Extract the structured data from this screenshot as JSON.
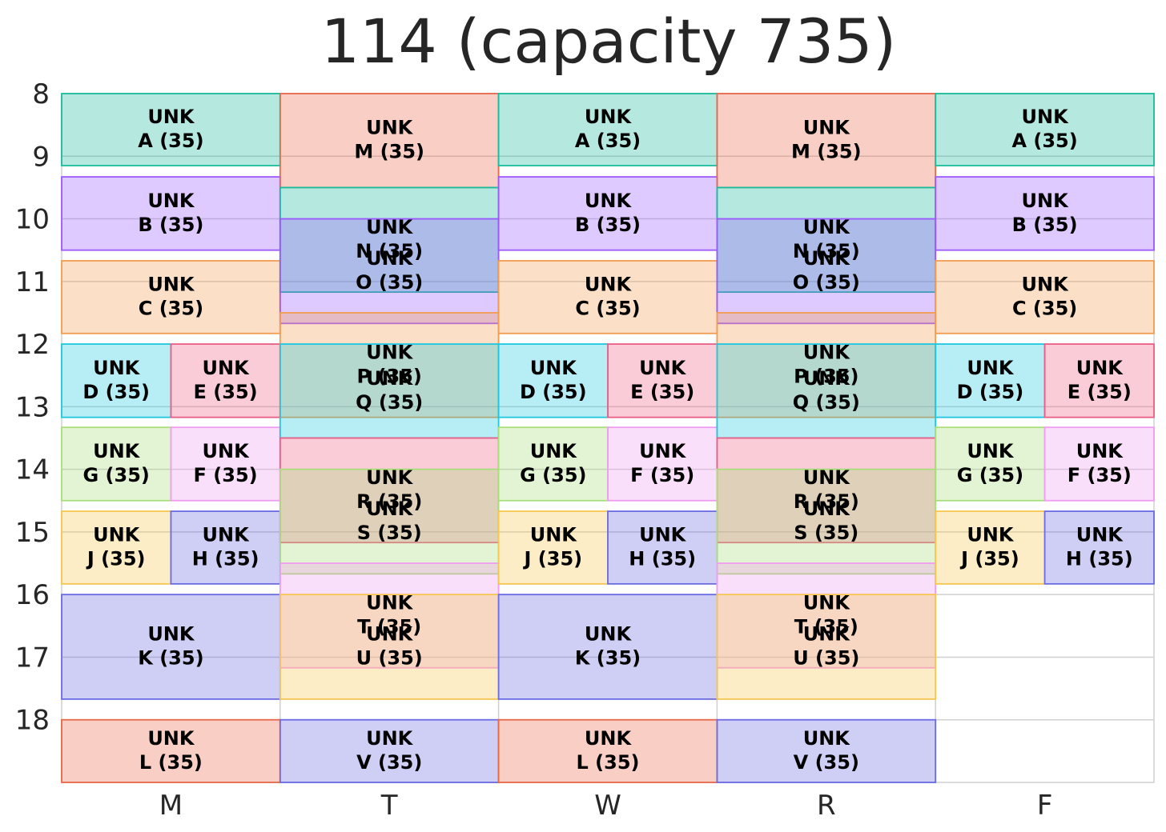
{
  "chart_data": {
    "type": "schedule",
    "title": "114 (capacity 735)",
    "days": [
      "M",
      "T",
      "W",
      "R",
      "F"
    ],
    "yticks": [
      8,
      9,
      10,
      11,
      12,
      13,
      14,
      15,
      16,
      17,
      18
    ],
    "ylim": [
      8,
      19
    ],
    "grid": true,
    "colors": {
      "A": "#1abc9c",
      "B": "#9b59ff",
      "C": "#f39c4f",
      "D": "#1ec8e0",
      "E": "#eb5f86",
      "F": "#f09cf0",
      "G": "#a9de7a",
      "H": "#6b6be3",
      "J": "#f6c64f",
      "K": "#6b6be3",
      "L": "#e8684a",
      "M": "#e8684a",
      "N": "#1abc9c",
      "O": "#9b59ff",
      "P": "#f39c4f",
      "Q": "#1ec8e0",
      "R": "#eb5f86",
      "S": "#a9de7a",
      "T": "#f09cf0",
      "U": "#f6c64f",
      "V": "#6b6be3"
    },
    "events": [
      {
        "day": 0,
        "start": 8.0,
        "end": 9.15,
        "col": 0,
        "cols": 1,
        "key": "A",
        "line1": "UNK",
        "line2": "A (35)"
      },
      {
        "day": 0,
        "start": 9.33,
        "end": 10.5,
        "col": 0,
        "cols": 1,
        "key": "B",
        "line1": "UNK",
        "line2": "B (35)"
      },
      {
        "day": 0,
        "start": 10.67,
        "end": 11.83,
        "col": 0,
        "cols": 1,
        "key": "C",
        "line1": "UNK",
        "line2": "C (35)"
      },
      {
        "day": 0,
        "start": 12.0,
        "end": 13.17,
        "col": 0,
        "cols": 2,
        "key": "D",
        "line1": "UNK",
        "line2": "D (35)"
      },
      {
        "day": 0,
        "start": 12.0,
        "end": 13.17,
        "col": 1,
        "cols": 2,
        "key": "E",
        "line1": "UNK",
        "line2": "E (35)"
      },
      {
        "day": 0,
        "start": 13.33,
        "end": 14.5,
        "col": 0,
        "cols": 2,
        "key": "G",
        "line1": "UNK",
        "line2": "G (35)"
      },
      {
        "day": 0,
        "start": 13.33,
        "end": 14.5,
        "col": 1,
        "cols": 2,
        "key": "F",
        "line1": "UNK",
        "line2": "F (35)"
      },
      {
        "day": 0,
        "start": 14.67,
        "end": 15.83,
        "col": 0,
        "cols": 2,
        "key": "J",
        "line1": "UNK",
        "line2": "J (35)"
      },
      {
        "day": 0,
        "start": 14.67,
        "end": 15.83,
        "col": 1,
        "cols": 2,
        "key": "H",
        "line1": "UNK",
        "line2": "H (35)"
      },
      {
        "day": 0,
        "start": 16.0,
        "end": 17.67,
        "col": 0,
        "cols": 1,
        "key": "K",
        "line1": "UNK",
        "line2": "K (35)"
      },
      {
        "day": 0,
        "start": 18.0,
        "end": 19.0,
        "col": 0,
        "cols": 1,
        "key": "L",
        "line1": "UNK",
        "line2": "L (35)"
      },
      {
        "day": 1,
        "start": 8.0,
        "end": 9.5,
        "col": 0,
        "cols": 1,
        "key": "M",
        "line1": "UNK",
        "line2": "M (35)"
      },
      {
        "day": 1,
        "start": 9.5,
        "end": 11.17,
        "col": 0,
        "cols": 1,
        "key": "N",
        "line1": "UNK",
        "line2": "N (35)"
      },
      {
        "day": 1,
        "start": 10.0,
        "end": 11.67,
        "col": 0,
        "cols": 1,
        "key": "O",
        "line1": "UNK",
        "line2": "O (35)"
      },
      {
        "day": 1,
        "start": 11.5,
        "end": 13.17,
        "col": 0,
        "cols": 1,
        "key": "P",
        "line1": "UNK",
        "line2": "P (35)"
      },
      {
        "day": 1,
        "start": 12.0,
        "end": 13.5,
        "col": 0,
        "cols": 1,
        "key": "Q",
        "line1": "UNK",
        "line2": "Q (35)"
      },
      {
        "day": 1,
        "start": 13.5,
        "end": 15.17,
        "col": 0,
        "cols": 1,
        "key": "R",
        "line1": "UNK",
        "line2": "R (35)"
      },
      {
        "day": 1,
        "start": 14.0,
        "end": 15.67,
        "col": 0,
        "cols": 1,
        "key": "S",
        "line1": "UNK",
        "line2": "S (35)"
      },
      {
        "day": 1,
        "start": 15.5,
        "end": 17.17,
        "col": 0,
        "cols": 1,
        "key": "T",
        "line1": "UNK",
        "line2": "T (35)"
      },
      {
        "day": 1,
        "start": 16.0,
        "end": 17.67,
        "col": 0,
        "cols": 1,
        "key": "U",
        "line1": "UNK",
        "line2": "U (35)"
      },
      {
        "day": 1,
        "start": 18.0,
        "end": 19.0,
        "col": 0,
        "cols": 1,
        "key": "V",
        "line1": "UNK",
        "line2": "V (35)"
      },
      {
        "day": 2,
        "start": 8.0,
        "end": 9.15,
        "col": 0,
        "cols": 1,
        "key": "A",
        "line1": "UNK",
        "line2": "A (35)"
      },
      {
        "day": 2,
        "start": 9.33,
        "end": 10.5,
        "col": 0,
        "cols": 1,
        "key": "B",
        "line1": "UNK",
        "line2": "B (35)"
      },
      {
        "day": 2,
        "start": 10.67,
        "end": 11.83,
        "col": 0,
        "cols": 1,
        "key": "C",
        "line1": "UNK",
        "line2": "C (35)"
      },
      {
        "day": 2,
        "start": 12.0,
        "end": 13.17,
        "col": 0,
        "cols": 2,
        "key": "D",
        "line1": "UNK",
        "line2": "D (35)"
      },
      {
        "day": 2,
        "start": 12.0,
        "end": 13.17,
        "col": 1,
        "cols": 2,
        "key": "E",
        "line1": "UNK",
        "line2": "E (35)"
      },
      {
        "day": 2,
        "start": 13.33,
        "end": 14.5,
        "col": 0,
        "cols": 2,
        "key": "G",
        "line1": "UNK",
        "line2": "G (35)"
      },
      {
        "day": 2,
        "start": 13.33,
        "end": 14.5,
        "col": 1,
        "cols": 2,
        "key": "F",
        "line1": "UNK",
        "line2": "F (35)"
      },
      {
        "day": 2,
        "start": 14.67,
        "end": 15.83,
        "col": 0,
        "cols": 2,
        "key": "J",
        "line1": "UNK",
        "line2": "J (35)"
      },
      {
        "day": 2,
        "start": 14.67,
        "end": 15.83,
        "col": 1,
        "cols": 2,
        "key": "H",
        "line1": "UNK",
        "line2": "H (35)"
      },
      {
        "day": 2,
        "start": 16.0,
        "end": 17.67,
        "col": 0,
        "cols": 1,
        "key": "K",
        "line1": "UNK",
        "line2": "K (35)"
      },
      {
        "day": 2,
        "start": 18.0,
        "end": 19.0,
        "col": 0,
        "cols": 1,
        "key": "L",
        "line1": "UNK",
        "line2": "L (35)"
      },
      {
        "day": 3,
        "start": 8.0,
        "end": 9.5,
        "col": 0,
        "cols": 1,
        "key": "M",
        "line1": "UNK",
        "line2": "M (35)"
      },
      {
        "day": 3,
        "start": 9.5,
        "end": 11.17,
        "col": 0,
        "cols": 1,
        "key": "N",
        "line1": "UNK",
        "line2": "N (35)"
      },
      {
        "day": 3,
        "start": 10.0,
        "end": 11.67,
        "col": 0,
        "cols": 1,
        "key": "O",
        "line1": "UNK",
        "line2": "O (35)"
      },
      {
        "day": 3,
        "start": 11.5,
        "end": 13.17,
        "col": 0,
        "cols": 1,
        "key": "P",
        "line1": "UNK",
        "line2": "P (35)"
      },
      {
        "day": 3,
        "start": 12.0,
        "end": 13.5,
        "col": 0,
        "cols": 1,
        "key": "Q",
        "line1": "UNK",
        "line2": "Q (35)"
      },
      {
        "day": 3,
        "start": 13.5,
        "end": 15.17,
        "col": 0,
        "cols": 1,
        "key": "R",
        "line1": "UNK",
        "line2": "R (35)"
      },
      {
        "day": 3,
        "start": 14.0,
        "end": 15.67,
        "col": 0,
        "cols": 1,
        "key": "S",
        "line1": "UNK",
        "line2": "S (35)"
      },
      {
        "day": 3,
        "start": 15.5,
        "end": 17.17,
        "col": 0,
        "cols": 1,
        "key": "T",
        "line1": "UNK",
        "line2": "T (35)"
      },
      {
        "day": 3,
        "start": 16.0,
        "end": 17.67,
        "col": 0,
        "cols": 1,
        "key": "U",
        "line1": "UNK",
        "line2": "U (35)"
      },
      {
        "day": 3,
        "start": 18.0,
        "end": 19.0,
        "col": 0,
        "cols": 1,
        "key": "V",
        "line1": "UNK",
        "line2": "V (35)"
      },
      {
        "day": 4,
        "start": 8.0,
        "end": 9.15,
        "col": 0,
        "cols": 1,
        "key": "A",
        "line1": "UNK",
        "line2": "A (35)"
      },
      {
        "day": 4,
        "start": 9.33,
        "end": 10.5,
        "col": 0,
        "cols": 1,
        "key": "B",
        "line1": "UNK",
        "line2": "B (35)"
      },
      {
        "day": 4,
        "start": 10.67,
        "end": 11.83,
        "col": 0,
        "cols": 1,
        "key": "C",
        "line1": "UNK",
        "line2": "C (35)"
      },
      {
        "day": 4,
        "start": 12.0,
        "end": 13.17,
        "col": 0,
        "cols": 2,
        "key": "D",
        "line1": "UNK",
        "line2": "D (35)"
      },
      {
        "day": 4,
        "start": 12.0,
        "end": 13.17,
        "col": 1,
        "cols": 2,
        "key": "E",
        "line1": "UNK",
        "line2": "E (35)"
      },
      {
        "day": 4,
        "start": 13.33,
        "end": 14.5,
        "col": 0,
        "cols": 2,
        "key": "G",
        "line1": "UNK",
        "line2": "G (35)"
      },
      {
        "day": 4,
        "start": 13.33,
        "end": 14.5,
        "col": 1,
        "cols": 2,
        "key": "F",
        "line1": "UNK",
        "line2": "F (35)"
      },
      {
        "day": 4,
        "start": 14.67,
        "end": 15.83,
        "col": 0,
        "cols": 2,
        "key": "J",
        "line1": "UNK",
        "line2": "J (35)"
      },
      {
        "day": 4,
        "start": 14.67,
        "end": 15.83,
        "col": 1,
        "cols": 2,
        "key": "H",
        "line1": "UNK",
        "line2": "H (35)"
      }
    ]
  }
}
